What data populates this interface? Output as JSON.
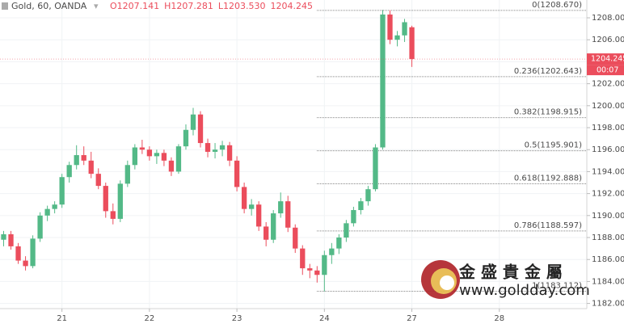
{
  "chart_data": {
    "type": "candlestick",
    "title": "Gold, 60, OANDA",
    "ohlc_header": [
      "O1207.141",
      "H1207.281",
      "L1203.530",
      "1204.245"
    ],
    "open": [
      1187.8,
      1188.3,
      1187.2,
      1185.9,
      1185.4,
      1187.9,
      1190.0,
      1190.6,
      1191.0,
      1193.5,
      1194.6,
      1195.5,
      1195.0,
      1193.8,
      1192.7,
      1190.4,
      1189.7,
      1192.9,
      1194.6,
      1196.2,
      1196.0,
      1195.4,
      1195.7,
      1195.0,
      1194.0,
      1196.3,
      1197.8,
      1199.2,
      1196.6,
      1195.8,
      1196.0,
      1196.4,
      1195.0,
      1192.6,
      1190.6,
      1191.0,
      1189.0,
      1187.8,
      1190.2,
      1191.3,
      1188.9,
      1187.0,
      1185.2,
      1185.0,
      1184.6,
      1186.4,
      1187.0,
      1188.0,
      1189.3,
      1190.5,
      1191.3,
      1192.4,
      1196.2,
      1208.3,
      1206.0,
      1206.4,
      1207.141
    ],
    "high": [
      1188.6,
      1188.6,
      1187.5,
      1186.3,
      1188.2,
      1190.3,
      1190.9,
      1191.3,
      1193.8,
      1194.9,
      1196.4,
      1196.3,
      1195.8,
      1194.3,
      1193.0,
      1191.1,
      1193.2,
      1195.0,
      1196.5,
      1196.9,
      1196.3,
      1196.0,
      1196.0,
      1195.3,
      1196.5,
      1198.3,
      1199.8,
      1199.5,
      1197.0,
      1196.6,
      1196.8,
      1196.7,
      1195.4,
      1193.0,
      1191.5,
      1191.3,
      1189.4,
      1190.5,
      1192.1,
      1191.8,
      1189.2,
      1187.3,
      1185.6,
      1185.4,
      1186.8,
      1187.5,
      1188.3,
      1189.6,
      1190.8,
      1191.6,
      1192.7,
      1196.5,
      1208.7,
      1208.7,
      1206.8,
      1207.9,
      1207.281
    ],
    "low": [
      1187.2,
      1186.9,
      1185.6,
      1185.0,
      1185.2,
      1187.6,
      1189.5,
      1190.2,
      1190.7,
      1193.0,
      1194.2,
      1194.6,
      1193.4,
      1192.4,
      1189.8,
      1189.2,
      1189.4,
      1192.6,
      1194.2,
      1195.6,
      1195.0,
      1194.7,
      1194.5,
      1193.6,
      1193.8,
      1196.0,
      1197.3,
      1196.2,
      1195.3,
      1195.2,
      1195.4,
      1194.5,
      1192.2,
      1190.2,
      1190.0,
      1188.6,
      1187.2,
      1187.5,
      1189.8,
      1188.5,
      1186.6,
      1184.6,
      1184.3,
      1183.9,
      1183.1,
      1185.6,
      1186.5,
      1187.6,
      1189.0,
      1190.1,
      1190.9,
      1192.2,
      1196.0,
      1205.6,
      1205.4,
      1205.8,
      1203.53
    ],
    "close": [
      1188.3,
      1187.2,
      1185.9,
      1185.4,
      1187.9,
      1190.0,
      1190.6,
      1191.0,
      1193.5,
      1194.6,
      1195.5,
      1195.0,
      1193.8,
      1192.7,
      1190.4,
      1189.7,
      1192.9,
      1194.6,
      1196.2,
      1196.0,
      1195.4,
      1195.7,
      1195.0,
      1194.0,
      1196.3,
      1197.8,
      1199.2,
      1196.6,
      1195.8,
      1196.0,
      1196.4,
      1195.0,
      1192.6,
      1190.6,
      1191.0,
      1189.0,
      1187.8,
      1190.2,
      1191.3,
      1188.9,
      1187.0,
      1185.2,
      1185.0,
      1184.6,
      1186.4,
      1187.0,
      1188.0,
      1189.3,
      1190.5,
      1191.3,
      1192.4,
      1196.2,
      1208.3,
      1206.0,
      1206.4,
      1207.6,
      1204.245
    ],
    "up_color": "#53b987",
    "down_color": "#eb4d5c",
    "xlim": [
      -0.5,
      80
    ],
    "xticks": [
      {
        "value": 8,
        "label": "21"
      },
      {
        "value": 20,
        "label": "22"
      },
      {
        "value": 32,
        "label": "23"
      },
      {
        "value": 44,
        "label": "24"
      },
      {
        "value": 56,
        "label": "27"
      },
      {
        "value": 68,
        "label": "28"
      }
    ],
    "ylim": [
      1181.53,
      1209.62
    ],
    "yticks": [
      {
        "value": 1182,
        "label": "1182.000"
      },
      {
        "value": 1184,
        "label": "1184.000"
      },
      {
        "value": 1186,
        "label": "1186.000"
      },
      {
        "value": 1188,
        "label": "1188.000"
      },
      {
        "value": 1190,
        "label": "1190.000"
      },
      {
        "value": 1192,
        "label": "1192.000"
      },
      {
        "value": 1194,
        "label": "1194.000"
      },
      {
        "value": 1196,
        "label": "1196.000"
      },
      {
        "value": 1198,
        "label": "1198.000"
      },
      {
        "value": 1200,
        "label": "1200.000"
      },
      {
        "value": 1202,
        "label": "1202.000"
      },
      {
        "value": 1204,
        "label": "1204.000"
      },
      {
        "value": 1206,
        "label": "1206.000"
      },
      {
        "value": 1208,
        "label": "1208.000"
      }
    ],
    "grid": true,
    "fib_levels": [
      {
        "value": 1208.67,
        "label": "0(1208.670)"
      },
      {
        "value": 1202.643,
        "label": "0.236(1202.643)"
      },
      {
        "value": 1198.915,
        "label": "0.382(1198.915)"
      },
      {
        "value": 1195.901,
        "label": "0.5(1195.901)"
      },
      {
        "value": 1192.888,
        "label": "0.618(1192.888)"
      },
      {
        "value": 1188.597,
        "label": "0.786(1188.597)"
      },
      {
        "value": 1183.112,
        "label": "1(1183.112)"
      }
    ],
    "last_price": {
      "value": 1204.245,
      "label": "1204.245"
    },
    "countdown": "00:07"
  },
  "watermark": {
    "brand": "金 盛 貴 金 屬",
    "url": "www.goldday.com"
  }
}
